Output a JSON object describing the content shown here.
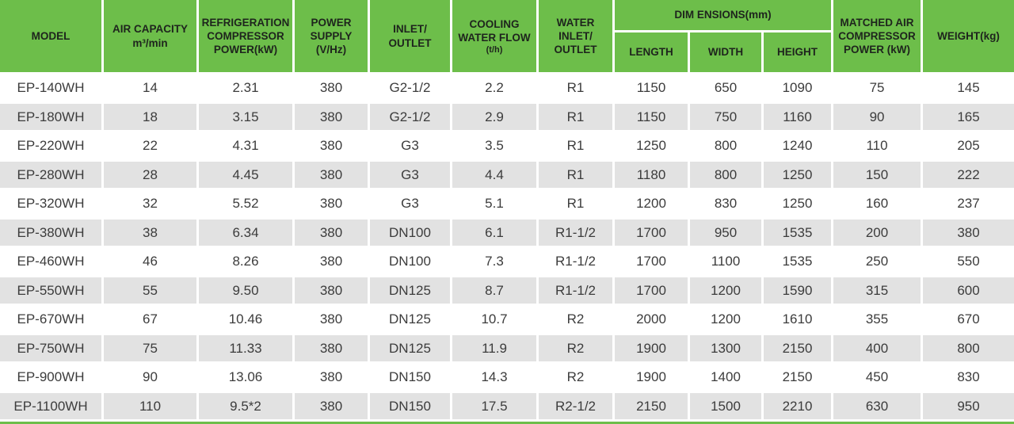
{
  "colors": {
    "header_green": "#6dbe4a",
    "row_alt": "#e2e2e2",
    "row_base": "#ffffff",
    "header_text": "#1e241d",
    "cell_text": "#3c3c3c"
  },
  "header": {
    "model": "MODEL",
    "air_capacity": "AIR CAPACITY\nm³/min",
    "refrigeration": "REFRIGERATION\nCOMPRESSOR\nPOWER(kW)",
    "power_supply": "POWER\nSUPPLY\n(V/Hz)",
    "inlet_outlet": "INLET/\nOUTLET",
    "cooling_main": "COOLING\nWATER FLOW",
    "cooling_sub": "(t/h)",
    "water_inlet_outlet": "WATER\nINLET/\nOUTLET",
    "dimensions_group": "DIM ENSIONS(mm)",
    "length": "LENGTH",
    "width": "WIDTH",
    "height": "HEIGHT",
    "matched_air": "MATCHED AIR\nCOMPRESSOR\nPOWER (kW)",
    "weight": "WEIGHT(kg)"
  },
  "column_ids": [
    "model",
    "air-capacity",
    "refrigeration-power",
    "power-supply",
    "inlet-outlet",
    "cooling-water-flow",
    "water-inlet-outlet",
    "length",
    "width",
    "height",
    "matched-air-power",
    "weight"
  ],
  "rows": [
    [
      "EP-140WH",
      "14",
      "2.31",
      "380",
      "G2-1/2",
      "2.2",
      "R1",
      "1150",
      "650",
      "1090",
      "75",
      "145"
    ],
    [
      "EP-180WH",
      "18",
      "3.15",
      "380",
      "G2-1/2",
      "2.9",
      "R1",
      "1150",
      "750",
      "1160",
      "90",
      "165"
    ],
    [
      "EP-220WH",
      "22",
      "4.31",
      "380",
      "G3",
      "3.5",
      "R1",
      "1250",
      "800",
      "1240",
      "110",
      "205"
    ],
    [
      "EP-280WH",
      "28",
      "4.45",
      "380",
      "G3",
      "4.4",
      "R1",
      "1180",
      "800",
      "1250",
      "150",
      "222"
    ],
    [
      "EP-320WH",
      "32",
      "5.52",
      "380",
      "G3",
      "5.1",
      "R1",
      "1200",
      "830",
      "1250",
      "160",
      "237"
    ],
    [
      "EP-380WH",
      "38",
      "6.34",
      "380",
      "DN100",
      "6.1",
      "R1-1/2",
      "1700",
      "950",
      "1535",
      "200",
      "380"
    ],
    [
      "EP-460WH",
      "46",
      "8.26",
      "380",
      "DN100",
      "7.3",
      "R1-1/2",
      "1700",
      "1100",
      "1535",
      "250",
      "550"
    ],
    [
      "EP-550WH",
      "55",
      "9.50",
      "380",
      "DN125",
      "8.7",
      "R1-1/2",
      "1700",
      "1200",
      "1590",
      "315",
      "600"
    ],
    [
      "EP-670WH",
      "67",
      "10.46",
      "380",
      "DN125",
      "10.7",
      "R2",
      "2000",
      "1200",
      "1610",
      "355",
      "670"
    ],
    [
      "EP-750WH",
      "75",
      "11.33",
      "380",
      "DN125",
      "11.9",
      "R2",
      "1900",
      "1300",
      "2150",
      "400",
      "800"
    ],
    [
      "EP-900WH",
      "90",
      "13.06",
      "380",
      "DN150",
      "14.3",
      "R2",
      "1900",
      "1400",
      "2150",
      "450",
      "830"
    ],
    [
      "EP-1100WH",
      "110",
      "9.5*2",
      "380",
      "DN150",
      "17.5",
      "R2-1/2",
      "2150",
      "1500",
      "2210",
      "630",
      "950"
    ]
  ]
}
